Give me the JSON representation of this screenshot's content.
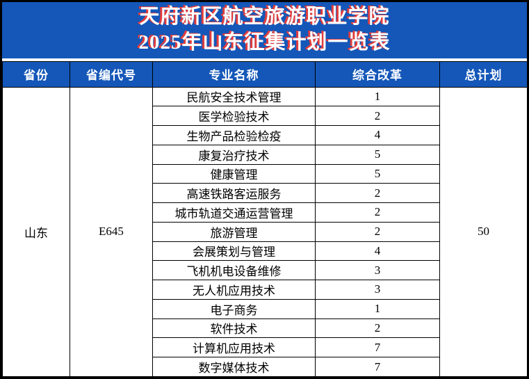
{
  "title": {
    "line1": "天府新区航空旅游职业学院",
    "line2": "2025年山东征集计划一览表"
  },
  "table": {
    "headers": [
      "省份",
      "省编代号",
      "专业名称",
      "综合改革",
      "总计划"
    ],
    "province": "山东",
    "province_code": "E645",
    "total_plan": "50",
    "rows": [
      {
        "major": "民航安全技术管理",
        "value": "1"
      },
      {
        "major": "医学检验技术",
        "value": "2"
      },
      {
        "major": "生物产品检验检疫",
        "value": "4"
      },
      {
        "major": "康复治疗技术",
        "value": "5"
      },
      {
        "major": "健康管理",
        "value": "5"
      },
      {
        "major": "高速铁路客运服务",
        "value": "2"
      },
      {
        "major": "城市轨道交通运营管理",
        "value": "2"
      },
      {
        "major": "旅游管理",
        "value": "2"
      },
      {
        "major": "会展策划与管理",
        "value": "4"
      },
      {
        "major": "飞机机电设备维修",
        "value": "3"
      },
      {
        "major": "无人机应用技术",
        "value": "3"
      },
      {
        "major": "电子商务",
        "value": "1"
      },
      {
        "major": "软件技术",
        "value": "2"
      },
      {
        "major": "计算机应用技术",
        "value": "7"
      },
      {
        "major": "数字媒体技术",
        "value": "7"
      }
    ]
  },
  "colors": {
    "banner_blue": "#1457b8",
    "title_red": "#e23c3c",
    "title_white": "#ffffff",
    "grid_black": "#000000"
  }
}
